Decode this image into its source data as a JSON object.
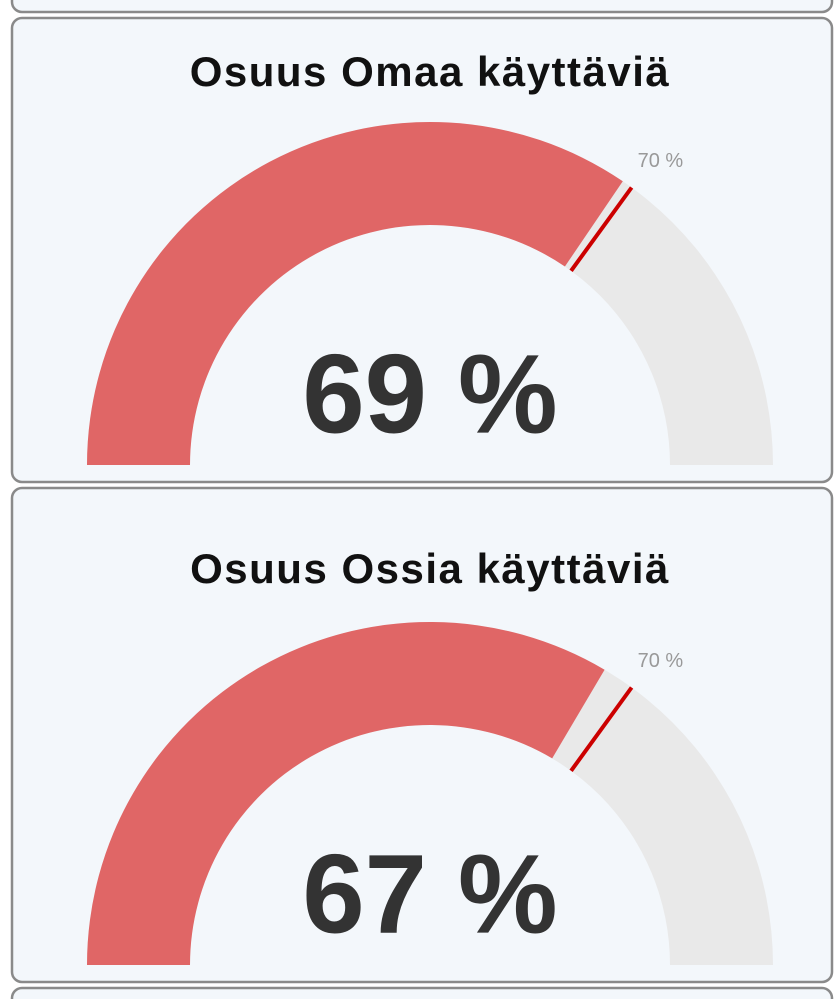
{
  "chart_data": [
    {
      "type": "gauge",
      "title": "Osuus Omaa käyttäviä",
      "values": [
        69
      ],
      "value_labels": [
        "69 %"
      ],
      "target": {
        "value": 70,
        "label": "70 %"
      },
      "ylim": [
        0,
        100
      ],
      "color": "#e06666",
      "track_color": "#e9e9e9",
      "target_color": "#cc0000"
    },
    {
      "type": "gauge",
      "title": "Osuus Ossia käyttäviä",
      "values": [
        67
      ],
      "value_labels": [
        "67 %"
      ],
      "target": {
        "value": 70,
        "label": "70 %"
      },
      "ylim": [
        0,
        100
      ],
      "color": "#e06666",
      "track_color": "#e9e9e9",
      "target_color": "#cc0000"
    }
  ]
}
